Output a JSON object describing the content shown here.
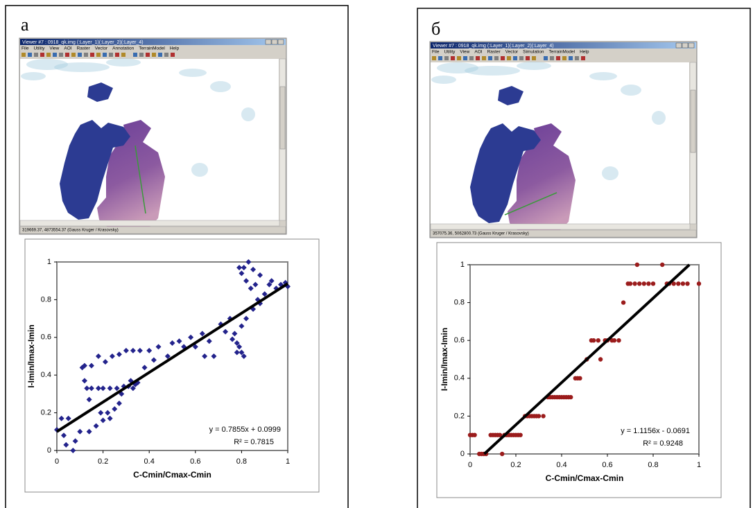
{
  "panel_labels": [
    "а",
    "б"
  ],
  "viewers": [
    {
      "title": "Viewer #7 : 0918_qk.img (:Layer_1)(:Layer_2)(:Layer_4)",
      "menu": [
        "File",
        "Utility",
        "View",
        "AOI",
        "Raster",
        "Vector",
        "Annotation",
        "TerrainModel",
        "Help"
      ],
      "status": "319669.37, 4873554.37  (Gauss Kruger / Krasovsky)"
    },
    {
      "title": "Viewer #7 : 0918_qk.img (:Layer_1)(:Layer_2)(:Layer_4)",
      "menu": [
        "File",
        "Utility",
        "View",
        "AOI",
        "Raster",
        "Vector",
        "Simulation",
        "TerrainModel",
        "Help"
      ],
      "status": "357075.36, 5062800.73  (Gauss Kruger / Krasovsky)"
    }
  ],
  "chart_data": [
    {
      "type": "scatter",
      "marker": "diamond",
      "color": "#23238c",
      "x_label": "C-Cmin/Cmax-Cmin",
      "y_label": "I-Imin/Imax-Imin",
      "xlim": [
        0,
        1
      ],
      "ylim": [
        0,
        1
      ],
      "xticks": [
        0,
        0.2,
        0.4,
        0.6,
        0.8,
        1
      ],
      "yticks": [
        0,
        0.2,
        0.4,
        0.6,
        0.8,
        1
      ],
      "x": [
        0,
        0.02,
        0.03,
        0.04,
        0.05,
        0.07,
        0.08,
        0.1,
        0.11,
        0.12,
        0.12,
        0.13,
        0.14,
        0.14,
        0.15,
        0.15,
        0.17,
        0.18,
        0.18,
        0.19,
        0.2,
        0.2,
        0.21,
        0.22,
        0.23,
        0.23,
        0.24,
        0.25,
        0.26,
        0.27,
        0.27,
        0.28,
        0.29,
        0.3,
        0.31,
        0.32,
        0.33,
        0.33,
        0.34,
        0.35,
        0.36,
        0.38,
        0.4,
        0.42,
        0.44,
        0.48,
        0.5,
        0.53,
        0.55,
        0.58,
        0.6,
        0.63,
        0.64,
        0.66,
        0.68,
        0.71,
        0.73,
        0.75,
        0.76,
        0.77,
        0.78,
        0.78,
        0.79,
        0.8,
        0.81,
        0.79,
        0.8,
        0.81,
        0.82,
        0.83,
        0.84,
        0.85,
        0.86,
        0.87,
        0.88,
        0.9,
        0.92,
        0.93,
        0.95,
        0.97,
        0.99,
        1,
        0.88,
        0.85,
        0.82,
        0.8
      ],
      "values": [
        0.11,
        0.17,
        0.08,
        0.03,
        0.17,
        0,
        0.05,
        0.1,
        0.44,
        0.45,
        0.37,
        0.33,
        0.1,
        0.27,
        0.45,
        0.33,
        0.13,
        0.33,
        0.5,
        0.2,
        0.16,
        0.33,
        0.47,
        0.2,
        0.33,
        0.17,
        0.5,
        0.22,
        0.33,
        0.51,
        0.25,
        0.3,
        0.34,
        0.53,
        0.34,
        0.37,
        0.33,
        0.53,
        0.35,
        0.36,
        0.53,
        0.44,
        0.53,
        0.48,
        0.55,
        0.5,
        0.57,
        0.58,
        0.55,
        0.6,
        0.55,
        0.62,
        0.5,
        0.58,
        0.5,
        0.67,
        0.63,
        0.7,
        0.59,
        0.62,
        0.57,
        0.52,
        0.55,
        0.52,
        0.5,
        0.97,
        0.94,
        0.97,
        0.9,
        1,
        0.86,
        0.96,
        0.88,
        0.8,
        0.93,
        0.83,
        0.88,
        0.9,
        0.86,
        0.88,
        0.89,
        0.87,
        0.78,
        0.75,
        0.7,
        0.66
      ],
      "trendline": {
        "slope": 0.7855,
        "intercept": 0.0999,
        "equation": "y = 0.7855x + 0.0999",
        "r2": "R² = 0.7815"
      }
    },
    {
      "type": "scatter",
      "marker": "circle",
      "color": "#9b1c1c",
      "x_label": "C-Cmin/Cmax-Cmin",
      "y_label": "I-Imin/Imax-Imin",
      "xlim": [
        0,
        1
      ],
      "ylim": [
        0,
        1
      ],
      "xticks": [
        0,
        0.2,
        0.4,
        0.6,
        0.8,
        1
      ],
      "yticks": [
        0,
        0.2,
        0.4,
        0.6,
        0.8,
        1
      ],
      "x": [
        0,
        0.01,
        0.02,
        0.04,
        0.05,
        0.06,
        0.07,
        0.14,
        0.09,
        0.1,
        0.11,
        0.12,
        0.13,
        0.15,
        0.16,
        0.17,
        0.18,
        0.19,
        0.2,
        0.21,
        0.22,
        0.24,
        0.25,
        0.26,
        0.27,
        0.28,
        0.29,
        0.3,
        0.32,
        0.34,
        0.35,
        0.36,
        0.37,
        0.38,
        0.39,
        0.4,
        0.41,
        0.42,
        0.43,
        0.44,
        0.46,
        0.47,
        0.48,
        0.51,
        0.57,
        0.53,
        0.54,
        0.56,
        0.59,
        0.6,
        0.62,
        0.63,
        0.65,
        0.67,
        0.69,
        0.7,
        0.72,
        0.74,
        0.76,
        0.78,
        0.8,
        0.86,
        0.87,
        0.89,
        0.91,
        0.93,
        0.95,
        1,
        0.73,
        0.84
      ],
      "values": [
        0.1,
        0.1,
        0.1,
        0,
        0,
        0,
        0,
        0,
        0.1,
        0.1,
        0.1,
        0.1,
        0.1,
        0.1,
        0.1,
        0.1,
        0.1,
        0.1,
        0.1,
        0.1,
        0.1,
        0.2,
        0.2,
        0.2,
        0.2,
        0.2,
        0.2,
        0.2,
        0.2,
        0.3,
        0.3,
        0.3,
        0.3,
        0.3,
        0.3,
        0.3,
        0.3,
        0.3,
        0.3,
        0.3,
        0.4,
        0.4,
        0.4,
        0.5,
        0.5,
        0.6,
        0.6,
        0.6,
        0.6,
        0.6,
        0.6,
        0.6,
        0.6,
        0.8,
        0.9,
        0.9,
        0.9,
        0.9,
        0.9,
        0.9,
        0.9,
        0.9,
        0.9,
        0.9,
        0.9,
        0.9,
        0.9,
        0.9,
        1,
        1
      ],
      "trendline": {
        "slope": 1.1156,
        "intercept": -0.0691,
        "equation": "y = 1.1156x - 0.0691",
        "r2": "R² = 0.9248"
      }
    }
  ]
}
